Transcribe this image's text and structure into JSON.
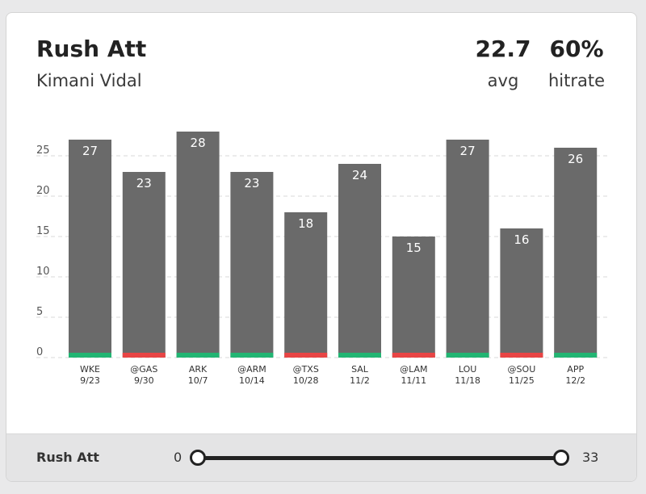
{
  "header": {
    "title": "Rush Att",
    "player": "Kimani Vidal",
    "stats": [
      {
        "value": "22.7",
        "label": "avg"
      },
      {
        "value": "60%",
        "label": "hitrate"
      }
    ]
  },
  "chart_data": {
    "type": "bar",
    "categories": [
      "WKE 9/23",
      "@GAS 9/30",
      "ARK 10/7",
      "@ARM 10/14",
      "@TXS 10/28",
      "SAL 11/2",
      "@LAM 11/11",
      "LOU 11/18",
      "@SOU 11/25",
      "APP 12/2"
    ],
    "opponents": [
      "WKE",
      "@GAS",
      "ARK",
      "@ARM",
      "@TXS",
      "SAL",
      "@LAM",
      "LOU",
      "@SOU",
      "APP"
    ],
    "dates": [
      "9/23",
      "9/30",
      "10/7",
      "10/14",
      "10/28",
      "11/2",
      "11/11",
      "11/18",
      "11/25",
      "12/2"
    ],
    "values": [
      27,
      23,
      28,
      23,
      18,
      24,
      15,
      27,
      16,
      26
    ],
    "hit": [
      true,
      false,
      true,
      true,
      false,
      true,
      false,
      true,
      false,
      true
    ],
    "yticks": [
      0,
      5,
      10,
      15,
      20,
      25
    ],
    "ylim": [
      0,
      28
    ],
    "grid": true,
    "colors": {
      "bar": "#6a6a6a",
      "hit": "#22b573",
      "miss": "#e84545",
      "grid": "#d9d9d9"
    }
  },
  "filter": {
    "label": "Rush Att",
    "min": "0",
    "max": "33",
    "range_low": 0,
    "range_high": 33
  }
}
